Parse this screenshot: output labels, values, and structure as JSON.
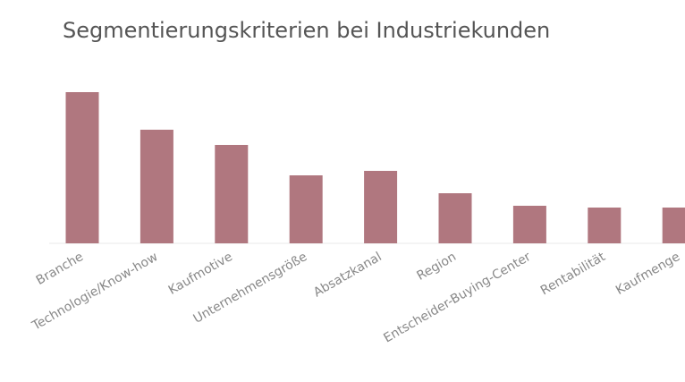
{
  "chart_data": {
    "type": "bar",
    "title": "Segmentierungskriterien bei Industriekunden",
    "categories": [
      "Branche",
      "Technologie/Know-how",
      "Kaufmotive",
      "Unternehmensgröße",
      "Absatzkanal",
      "Region",
      "Entscheider-Buying-Center",
      "Rentabilität",
      "Kaufmenge"
    ],
    "values": [
      169,
      127,
      110,
      76,
      81,
      56,
      42,
      40,
      40
    ],
    "color": "#b0777f",
    "ylim": [
      0,
      170
    ]
  }
}
